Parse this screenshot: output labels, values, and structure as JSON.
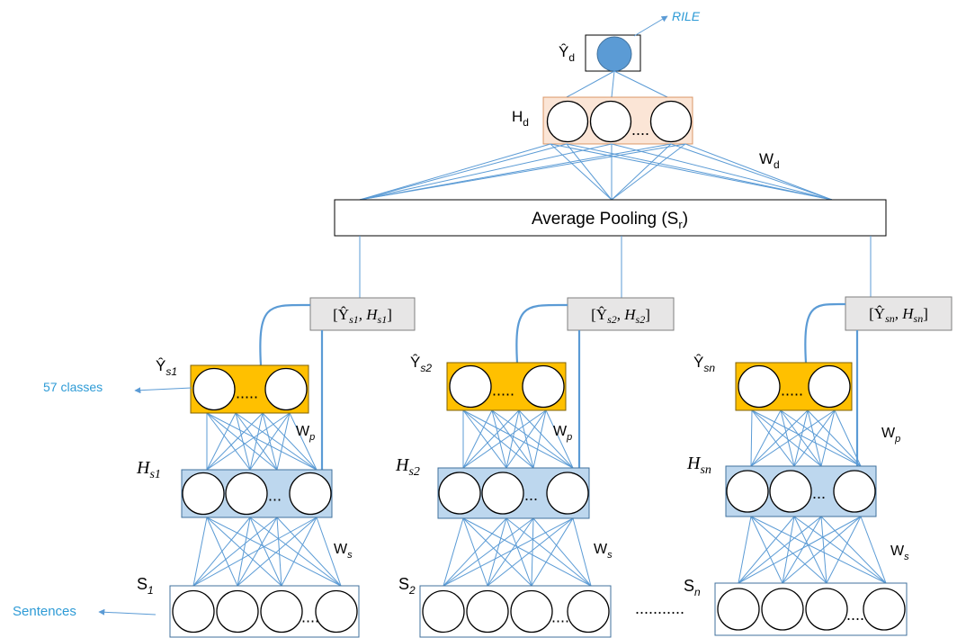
{
  "colors": {
    "edge": "#5b9bd5",
    "hidden_fill": "#bdd7ee",
    "hidden_stroke": "#41719c",
    "class_fill": "#ffc000",
    "class_stroke": "#7f6000",
    "doc_hidden_fill": "#fbe5d6",
    "doc_hidden_stroke": "#c55a11",
    "concat_fill": "#e7e6e6",
    "output_node": "#5b9bd5",
    "annotation": "#2e9bd6"
  },
  "document": {
    "output_label": "Ŷ",
    "output_sub": "d",
    "output_target": "RILE",
    "hidden_label": "H",
    "hidden_sub": "d",
    "hidden_dots": "....",
    "weight_label": "W",
    "weight_sub": "d",
    "pooling_text": "Average Pooling (S",
    "pooling_sub": "r",
    "pooling_close": ")"
  },
  "annotations": {
    "classes": "57 classes",
    "sentences": "Sentences"
  },
  "between_dots": "...........",
  "branches": [
    {
      "concat_a": "[Ŷ",
      "concat_a_sub": "s1",
      "concat_b": ", H",
      "concat_b_sub": "s1",
      "concat_close": "]",
      "class_label": "Ŷ",
      "class_sub": "s1",
      "class_dots": ".....",
      "wp_label": "W",
      "wp_sub": "p",
      "hidden_label": "H",
      "hidden_sub": "s1",
      "hidden_dots": "...",
      "ws_label": "W",
      "ws_sub": "s",
      "input_label": "S",
      "input_sub": "1",
      "input_dots": "...."
    },
    {
      "concat_a": "[Ŷ",
      "concat_a_sub": "s2",
      "concat_b": ", H",
      "concat_b_sub": "s2",
      "concat_close": "]",
      "class_label": "Ŷ",
      "class_sub": "s2",
      "class_dots": ".....",
      "wp_label": "W",
      "wp_sub": "p",
      "hidden_label": "H",
      "hidden_sub": "s2",
      "hidden_dots": "...",
      "ws_label": "W",
      "ws_sub": "s",
      "input_label": "S",
      "input_sub": "2",
      "input_dots": "...."
    },
    {
      "concat_a": "[Ŷ",
      "concat_a_sub": "sn",
      "concat_b": ", H",
      "concat_b_sub": "sn",
      "concat_close": "]",
      "class_label": "Ŷ",
      "class_sub": "sn",
      "class_dots": ".....",
      "wp_label": "W",
      "wp_sub": "p",
      "hidden_label": "H",
      "hidden_sub": "sn",
      "hidden_dots": "...",
      "ws_label": "W",
      "ws_sub": "s",
      "input_label": "S",
      "input_sub": "n",
      "input_dots": "...."
    }
  ]
}
